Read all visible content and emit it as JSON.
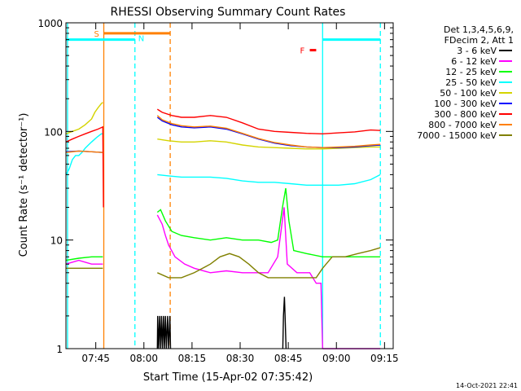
{
  "chart_data": {
    "type": "line",
    "title": "RHESSI Observing Summary Count Rates",
    "xlabel": "Start Time (15-Apr-02 07:35:42)",
    "ylabel": "Count Rate (s⁻¹ detector⁻¹)",
    "x_scale": "time (minutes after 07:35:42)",
    "y_scale": "log",
    "xlim": [
      0,
      102
    ],
    "ylim": [
      1,
      1000
    ],
    "x_ticks": [
      {
        "t": 9.3,
        "label": "07:45"
      },
      {
        "t": 24.3,
        "label": "08:00"
      },
      {
        "t": 39.3,
        "label": "08:15"
      },
      {
        "t": 54.3,
        "label": "08:30"
      },
      {
        "t": 69.3,
        "label": "08:45"
      },
      {
        "t": 84.3,
        "label": "09:00"
      },
      {
        "t": 99.3,
        "label": "09:15"
      }
    ],
    "y_ticks": [
      {
        "v": 1,
        "label": "1"
      },
      {
        "v": 10,
        "label": "10"
      },
      {
        "v": 100,
        "label": "100"
      },
      {
        "v": 1000,
        "label": "1000"
      }
    ],
    "legend_header": [
      "Det 1,3,4,5,6,9,",
      "FDecim 2, Att 1"
    ],
    "legend_position": "right",
    "series": [
      {
        "name": "3 - 6 keV",
        "color": "#000000",
        "segments": [
          [
            [
              28.5,
              1.0
            ],
            [
              28.6,
              2.0
            ],
            [
              28.9,
              1.0
            ],
            [
              29.2,
              2.0
            ],
            [
              29.5,
              1.0
            ],
            [
              29.8,
              2.0
            ],
            [
              30.1,
              1.0
            ],
            [
              30.4,
              2.0
            ],
            [
              30.7,
              1.0
            ],
            [
              31.0,
              2.0
            ],
            [
              31.3,
              1.0
            ],
            [
              31.7,
              2.0
            ],
            [
              32.0,
              1.0
            ],
            [
              32.4,
              2.0
            ],
            [
              32.6,
              1.0
            ]
          ],
          [
            [
              67.6,
              1.0
            ],
            [
              67.8,
              2.0
            ],
            [
              68.1,
              3.0
            ],
            [
              68.3,
              2.0
            ],
            [
              68.6,
              1.0
            ]
          ]
        ]
      },
      {
        "name": "6 - 12 keV",
        "color": "#ff00ff",
        "segments": [
          [
            [
              0,
              6.0
            ],
            [
              4,
              6.5
            ],
            [
              8,
              6.0
            ],
            [
              11.5,
              6.0
            ]
          ],
          [
            [
              28.5,
              17
            ],
            [
              30,
              14
            ],
            [
              31,
              11
            ],
            [
              32,
              9
            ],
            [
              34,
              7
            ],
            [
              37,
              6
            ],
            [
              40,
              5.5
            ],
            [
              45,
              5
            ],
            [
              50,
              5.2
            ],
            [
              55,
              5
            ],
            [
              60,
              5
            ],
            [
              63,
              5
            ],
            [
              66,
              7
            ],
            [
              68,
              20
            ],
            [
              69,
              6
            ],
            [
              72,
              5
            ],
            [
              76,
              5
            ],
            [
              78,
              4
            ],
            [
              79.5,
              4
            ],
            [
              80,
              1.0
            ]
          ],
          [
            [
              80,
              1.0
            ],
            [
              85,
              1.0
            ],
            [
              90,
              1.0
            ],
            [
              98,
              1.0
            ]
          ]
        ]
      },
      {
        "name": "12 - 25 keV",
        "color": "#00ff00",
        "segments": [
          [
            [
              0,
              6.5
            ],
            [
              4,
              6.8
            ],
            [
              8,
              7.0
            ],
            [
              11.5,
              7.0
            ]
          ],
          [
            [
              28.5,
              18
            ],
            [
              29.5,
              19
            ],
            [
              31,
              15
            ],
            [
              33,
              12
            ],
            [
              36,
              11
            ],
            [
              40,
              10.5
            ],
            [
              45,
              10
            ],
            [
              50,
              10.5
            ],
            [
              55,
              10
            ],
            [
              60,
              10
            ],
            [
              64,
              9.5
            ],
            [
              66,
              10
            ],
            [
              67.5,
              20
            ],
            [
              68.5,
              30
            ],
            [
              69.5,
              15
            ],
            [
              71,
              8
            ],
            [
              75,
              7.5
            ],
            [
              80,
              7
            ],
            [
              85,
              7
            ],
            [
              90,
              7
            ],
            [
              95,
              7
            ],
            [
              98,
              7
            ]
          ]
        ]
      },
      {
        "name": "25 - 50 keV",
        "color": "#00ffff",
        "segments": [
          [
            [
              0,
              40
            ],
            [
              1,
              45
            ],
            [
              2,
              55
            ],
            [
              3,
              60
            ],
            [
              4,
              60
            ],
            [
              5,
              64
            ],
            [
              6,
              70
            ],
            [
              7,
              75
            ],
            [
              8,
              80
            ],
            [
              9,
              85
            ],
            [
              10,
              90
            ],
            [
              11,
              95
            ],
            [
              11.5,
              95
            ]
          ],
          [
            [
              28.5,
              40
            ],
            [
              32,
              39
            ],
            [
              36,
              38
            ],
            [
              40,
              38
            ],
            [
              45,
              38
            ],
            [
              50,
              37
            ],
            [
              55,
              35
            ],
            [
              60,
              34
            ],
            [
              65,
              34
            ],
            [
              70,
              33
            ],
            [
              75,
              32
            ],
            [
              80,
              32
            ],
            [
              85,
              32
            ],
            [
              90,
              33
            ],
            [
              95,
              36
            ],
            [
              98,
              40
            ]
          ]
        ]
      },
      {
        "name": "50 - 100 keV",
        "color": "#d4d400",
        "segments": [
          [
            [
              0,
              95
            ],
            [
              2,
              100
            ],
            [
              4,
              105
            ],
            [
              6,
              115
            ],
            [
              8,
              130
            ],
            [
              9,
              150
            ],
            [
              10,
              165
            ],
            [
              11,
              180
            ],
            [
              11.5,
              185
            ]
          ],
          [
            [
              28.5,
              85
            ],
            [
              32,
              82
            ],
            [
              36,
              80
            ],
            [
              40,
              80
            ],
            [
              45,
              82
            ],
            [
              50,
              80
            ],
            [
              55,
              75
            ],
            [
              60,
              72
            ],
            [
              65,
              71
            ],
            [
              70,
              70
            ],
            [
              75,
              69
            ],
            [
              80,
              69
            ],
            [
              85,
              70
            ],
            [
              90,
              71
            ],
            [
              95,
              72
            ],
            [
              98,
              72
            ]
          ]
        ]
      },
      {
        "name": "100 - 300 keV",
        "color": "#0000ff",
        "segments": [
          [
            [
              0,
              65
            ],
            [
              4,
              66
            ],
            [
              8,
              65
            ],
            [
              11.5,
              64
            ]
          ],
          [
            [
              28.5,
              135
            ],
            [
              30,
              125
            ],
            [
              33,
              115
            ],
            [
              36,
              110
            ],
            [
              40,
              108
            ],
            [
              45,
              110
            ],
            [
              50,
              105
            ],
            [
              55,
              95
            ],
            [
              60,
              85
            ],
            [
              65,
              78
            ],
            [
              70,
              74
            ],
            [
              75,
              72
            ],
            [
              80,
              71
            ],
            [
              85,
              71
            ],
            [
              90,
              72
            ],
            [
              95,
              74
            ],
            [
              98,
              75
            ]
          ]
        ]
      },
      {
        "name": "300 - 800 keV",
        "color": "#ff0000",
        "segments": [
          [
            [
              0,
              80
            ],
            [
              2,
              85
            ],
            [
              4,
              90
            ],
            [
              6,
              95
            ],
            [
              8,
              100
            ],
            [
              10,
              105
            ],
            [
              11.5,
              110
            ],
            [
              11.7,
              20
            ]
          ],
          [
            [
              28.5,
              160
            ],
            [
              30,
              150
            ],
            [
              33,
              140
            ],
            [
              36,
              135
            ],
            [
              40,
              135
            ],
            [
              45,
              140
            ],
            [
              50,
              135
            ],
            [
              55,
              120
            ],
            [
              60,
              105
            ],
            [
              65,
              100
            ],
            [
              70,
              98
            ],
            [
              75,
              96
            ],
            [
              80,
              95
            ],
            [
              85,
              97
            ],
            [
              90,
              99
            ],
            [
              95,
              103
            ],
            [
              98,
              102
            ]
          ]
        ]
      },
      {
        "name": "800 - 7000 keV",
        "color": "#ff8000",
        "segments": [
          [
            [
              0,
              64
            ],
            [
              4,
              66
            ],
            [
              8,
              65
            ],
            [
              11.5,
              64
            ]
          ],
          [
            [
              28.5,
              140
            ],
            [
              30,
              128
            ],
            [
              33,
              118
            ],
            [
              36,
              113
            ],
            [
              40,
              110
            ],
            [
              45,
              112
            ],
            [
              50,
              107
            ],
            [
              55,
              96
            ],
            [
              60,
              86
            ],
            [
              65,
              79
            ],
            [
              70,
              75
            ],
            [
              75,
              72
            ],
            [
              80,
              71
            ],
            [
              85,
              72
            ],
            [
              90,
              73
            ],
            [
              95,
              75
            ],
            [
              98,
              76
            ]
          ]
        ]
      },
      {
        "name": "7000 - 15000 keV",
        "color": "#808000",
        "segments": [
          [
            [
              0,
              5.5
            ],
            [
              4,
              5.5
            ],
            [
              8,
              5.5
            ],
            [
              11.5,
              5.5
            ]
          ],
          [
            [
              28.5,
              5
            ],
            [
              32,
              4.5
            ],
            [
              36,
              4.5
            ],
            [
              40,
              5
            ],
            [
              45,
              6
            ],
            [
              48,
              7
            ],
            [
              51,
              7.5
            ],
            [
              54,
              7
            ],
            [
              57,
              6
            ],
            [
              60,
              5
            ],
            [
              63,
              4.5
            ],
            [
              66,
              4.5
            ],
            [
              70,
              4.5
            ],
            [
              74,
              4.5
            ],
            [
              78,
              4.5
            ],
            [
              80,
              5.5
            ],
            [
              83,
              7
            ],
            [
              87,
              7
            ],
            [
              91,
              7.5
            ],
            [
              95,
              8
            ],
            [
              98,
              8.5
            ]
          ]
        ]
      }
    ],
    "annotations": [
      {
        "label": "S",
        "color": "#ff8000",
        "x_start": 11.8,
        "x_end": 32.5,
        "y": 800
      },
      {
        "label": "N",
        "color": "#00ffff",
        "x_start": 0,
        "x_end": 21.5,
        "y": 700
      },
      {
        "label": "F",
        "color": "#ff0000",
        "x_start": 76,
        "x_end": 78,
        "y": 560
      }
    ],
    "vertical_markers": [
      {
        "t": 0.5,
        "color": "#00ffff",
        "style": "solid"
      },
      {
        "t": 11.8,
        "color": "#ff8000",
        "style": "solid"
      },
      {
        "t": 21.5,
        "color": "#00ffff",
        "style": "dashed"
      },
      {
        "t": 32.5,
        "color": "#ff8000",
        "style": "dashed"
      },
      {
        "t": 80.0,
        "color": "#00ffff",
        "style": "solid"
      },
      {
        "t": 98.0,
        "color": "#00ffff",
        "style": "dashed"
      }
    ],
    "cyan_night_bars": [
      {
        "x_start": 0,
        "x_end": 21.5,
        "y": 700
      },
      {
        "x_start": 80,
        "x_end": 98,
        "y": 700
      }
    ],
    "timestamp": "14-Oct-2021 22:41"
  },
  "colors": {
    "background": "#ffffff",
    "axis": "#000000"
  }
}
